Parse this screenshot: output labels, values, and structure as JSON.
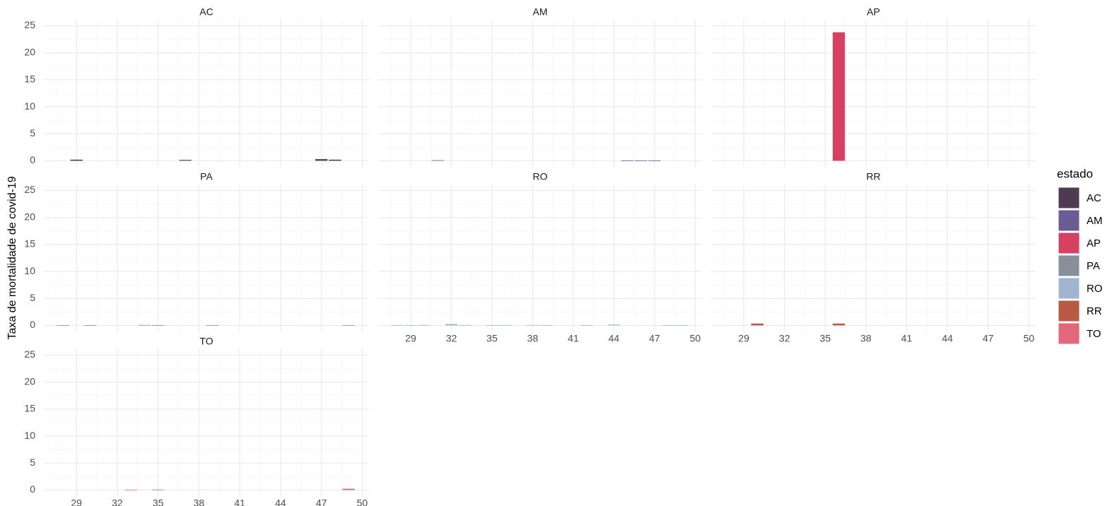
{
  "chart_data": {
    "type": "bar",
    "ylabel": "Taxa de mortalidade de covid-19",
    "legend_title": "estado",
    "xlim": [
      26.6,
      50.5
    ],
    "xticks": [
      29,
      32,
      35,
      38,
      41,
      44,
      47,
      50
    ],
    "ylim": [
      -1.25,
      26.25
    ],
    "yticks": [
      0,
      5,
      10,
      15,
      20,
      25
    ],
    "grid": true,
    "series": [
      {
        "name": "AC",
        "color": "#4e3a52",
        "x": [
          29,
          37,
          47,
          48
        ],
        "values": [
          0.2,
          0.15,
          0.3,
          0.2
        ]
      },
      {
        "name": "AM",
        "color": "#6b5b95",
        "x": [
          31,
          45,
          46,
          47
        ],
        "values": [
          0.1,
          0.05,
          0.05,
          0.05
        ]
      },
      {
        "name": "AP",
        "color": "#d64161",
        "x": [
          36
        ],
        "values": [
          23.8
        ]
      },
      {
        "name": "PA",
        "color": "#878f99",
        "x": [
          28,
          30,
          34,
          35,
          39,
          49
        ],
        "values": [
          0.05,
          0.05,
          0.08,
          0.05,
          0.03,
          0.03
        ]
      },
      {
        "name": "RO",
        "color": "#9fb5cf",
        "x": [
          28,
          29,
          30,
          32,
          33,
          35,
          36,
          38,
          39,
          42,
          44,
          48,
          49
        ],
        "values": [
          0.05,
          0.05,
          0.05,
          0.25,
          0.05,
          0.05,
          0.05,
          0.08,
          0.05,
          0.05,
          0.15,
          0.05,
          0.05
        ]
      },
      {
        "name": "RR",
        "color": "#b85a43",
        "x": [
          30,
          36
        ],
        "values": [
          0.35,
          0.35
        ]
      },
      {
        "name": "TO",
        "color": "#e2687c",
        "x": [
          33,
          35,
          49
        ],
        "values": [
          0.08,
          0.1,
          0.25
        ]
      }
    ]
  }
}
